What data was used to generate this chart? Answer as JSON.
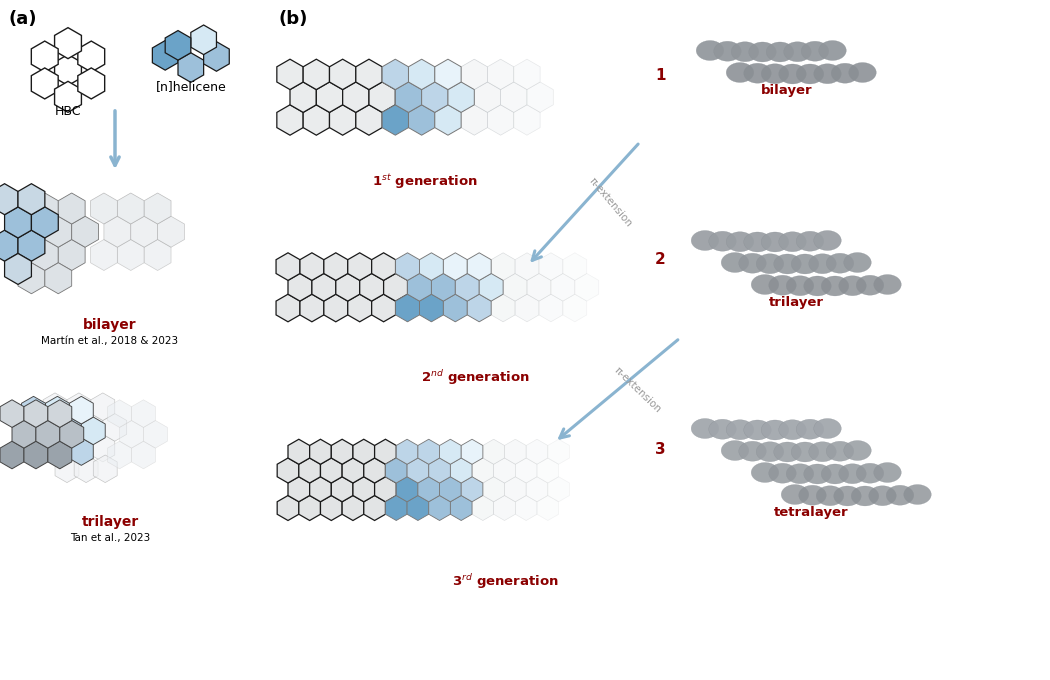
{
  "bg_color": "#ffffff",
  "red_color": "#8B0000",
  "blue_dark": "#6ba3c8",
  "blue_mid": "#9dc0da",
  "blue_light": "#bdd5e8",
  "blue_vlight": "#d6e9f4",
  "blue_vvlight": "#e8f3fa",
  "gray_dark": "#9aa3ab",
  "gray_mid": "#b8c0c7",
  "gray_light": "#d0d6db",
  "gray_vlight": "#e5e9ec",
  "gray_vvlight": "#f0f2f4",
  "edge_dark": "#1a1a1a",
  "edge_mid": "#444444",
  "edge_light": "#777777",
  "edge_vlight": "#aaaaaa",
  "arrow_blue": "#8ab4d0",
  "sphere_color": "#b2b8be",
  "sphere_edge": "#888e94",
  "label_a": "(a)",
  "label_b": "(b)",
  "label_hbc": "HBC",
  "label_helicene": "[n]helicene",
  "label_bilayer_a": "bilayer",
  "label_martin": "Martín et al., 2018 & 2023",
  "label_trilayer_a": "trilayer",
  "label_tan": "Tan et al., 2023",
  "label_bilayer_b": "bilayer",
  "label_trilayer_b": "trilayer",
  "label_tetralayer": "tetralayer",
  "label_pi": "π-extension",
  "num1": "1",
  "num2": "2",
  "num3": "3"
}
